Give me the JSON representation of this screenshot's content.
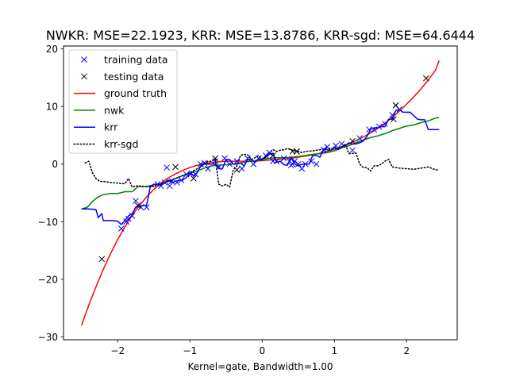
{
  "chart_data": {
    "type": "line",
    "title": "NWKR: MSE=22.1923, KRR: MSE=13.8786, KRR-sgd: MSE=64.6444",
    "xlabel": "Kernel=gate, Bandwidth=1.00",
    "ylabel": "",
    "xlim": [
      -2.75,
      2.7
    ],
    "ylim": [
      -30.5,
      20.5
    ],
    "xticks": [
      -2,
      -1,
      0,
      1,
      2
    ],
    "xtick_labels": [
      "−2",
      "−1",
      "0",
      "1",
      "2"
    ],
    "yticks": [
      -30,
      -20,
      -10,
      0,
      10,
      20
    ],
    "ytick_labels": [
      "−30",
      "−20",
      "−10",
      "0",
      "10",
      "20"
    ],
    "grid": false,
    "legend_position": "top-left",
    "series": [
      {
        "name": "training data",
        "kind": "marker",
        "marker": "x",
        "color": "#0000ff",
        "x": [
          -1.95,
          -1.88,
          -1.85,
          -1.8,
          -1.75,
          -1.68,
          -1.6,
          -1.45,
          -1.4,
          -1.35,
          -1.32,
          -1.28,
          -1.25,
          -1.18,
          -1.12,
          -1.05,
          -0.98,
          -0.92,
          -0.85,
          -0.8,
          -0.75,
          -0.65,
          -0.6,
          -0.52,
          -0.45,
          -0.35,
          -0.28,
          -0.2,
          -0.12,
          -0.05,
          0.05,
          0.1,
          0.15,
          0.2,
          0.3,
          0.38,
          0.4,
          0.42,
          0.45,
          0.48,
          0.5,
          0.55,
          0.6,
          0.68,
          0.75,
          0.85,
          0.9,
          1.02,
          1.1,
          1.25,
          1.35,
          1.48,
          1.55,
          1.62,
          1.7,
          1.8,
          1.85,
          1.9
        ],
        "y": [
          -11.2,
          -10.0,
          -9.5,
          -9.0,
          -6.4,
          -7.5,
          -7.5,
          -3.5,
          -3.8,
          -3.2,
          -0.6,
          -3.8,
          -3.0,
          -3.2,
          -2.8,
          -1.8,
          -1.6,
          -1.8,
          0.0,
          0.2,
          -0.8,
          0.5,
          -0.5,
          1.0,
          0.0,
          0.5,
          -0.8,
          1.0,
          0.0,
          1.0,
          1.5,
          2.0,
          0.5,
          0.5,
          1.0,
          0.5,
          -0.2,
          0.0,
          0.5,
          2.2,
          0.0,
          -0.8,
          0.0,
          0.5,
          0.0,
          2.5,
          3.0,
          3.2,
          3.5,
          2.4,
          4.5,
          6.0,
          6.0,
          6.5,
          7.0,
          8.5,
          10.2,
          9.5
        ]
      },
      {
        "name": "testing data",
        "kind": "marker",
        "marker": "x",
        "color": "#000000",
        "x": [
          -2.22,
          -1.72,
          -1.2,
          -0.95,
          -0.65,
          -0.35,
          0.15,
          0.42,
          0.48,
          1.25,
          1.82,
          1.85,
          2.27
        ],
        "y": [
          -16.5,
          -7.2,
          -0.5,
          -2.5,
          1.0,
          -1.0,
          1.5,
          2.2,
          2.2,
          4.0,
          7.8,
          10.2,
          14.9
        ]
      },
      {
        "name": "ground truth",
        "kind": "line",
        "color": "#ff0000",
        "x": [
          -2.5,
          -2.4,
          -2.3,
          -2.2,
          -2.1,
          -2.0,
          -1.9,
          -1.8,
          -1.7,
          -1.6,
          -1.5,
          -1.4,
          -1.3,
          -1.2,
          -1.1,
          -1.0,
          -0.9,
          -0.8,
          -0.7,
          -0.6,
          -0.5,
          -0.4,
          -0.3,
          -0.2,
          -0.1,
          0.0,
          0.1,
          0.2,
          0.3,
          0.4,
          0.5,
          0.6,
          0.7,
          0.8,
          0.9,
          1.0,
          1.1,
          1.2,
          1.3,
          1.4,
          1.5,
          1.6,
          1.7,
          1.8,
          1.9,
          2.0,
          2.1,
          2.2,
          2.3,
          2.4,
          2.45
        ],
        "y": [
          -28.0,
          -24.5,
          -21.3,
          -18.3,
          -15.6,
          -13.1,
          -10.9,
          -8.9,
          -7.2,
          -5.7,
          -4.4,
          -3.3,
          -2.4,
          -1.7,
          -1.1,
          -0.6,
          -0.2,
          0.1,
          0.3,
          0.4,
          0.5,
          0.5,
          0.5,
          0.5,
          0.5,
          0.6,
          0.7,
          0.8,
          0.9,
          1.0,
          1.2,
          1.4,
          1.6,
          1.9,
          2.2,
          2.6,
          3.0,
          3.5,
          4.1,
          4.7,
          5.4,
          6.2,
          7.1,
          8.1,
          9.2,
          10.4,
          11.7,
          13.1,
          14.6,
          16.3,
          18.0
        ]
      },
      {
        "name": "nwk",
        "kind": "line",
        "color": "#008000",
        "x": [
          -2.5,
          -2.42,
          -2.35,
          -2.28,
          -2.2,
          -2.1,
          -2.0,
          -1.9,
          -1.8,
          -1.72,
          -1.6,
          -1.5,
          -1.4,
          -1.3,
          -1.2,
          -1.1,
          -1.0,
          -0.9,
          -0.8,
          -0.7,
          -0.6,
          -0.5,
          -0.4,
          -0.3,
          -0.2,
          -0.1,
          0.0,
          0.1,
          0.2,
          0.3,
          0.4,
          0.5,
          0.6,
          0.7,
          0.8,
          0.9,
          1.0,
          1.1,
          1.2,
          1.3,
          1.4,
          1.5,
          1.6,
          1.7,
          1.8,
          1.9,
          2.0,
          2.1,
          2.2,
          2.3,
          2.4,
          2.45
        ],
        "y": [
          -7.8,
          -7.5,
          -6.5,
          -5.8,
          -5.3,
          -5.1,
          -5.1,
          -4.8,
          -4.8,
          -3.9,
          -3.9,
          -3.6,
          -3.4,
          -3.0,
          -2.5,
          -2.0,
          -1.6,
          -1.2,
          -0.7,
          -0.3,
          -0.2,
          -0.1,
          0.0,
          0.2,
          0.4,
          0.6,
          0.8,
          1.0,
          1.1,
          1.1,
          1.2,
          1.3,
          1.5,
          1.7,
          1.8,
          2.0,
          2.3,
          2.8,
          3.2,
          3.7,
          4.2,
          4.6,
          4.9,
          5.3,
          5.8,
          6.2,
          6.6,
          6.8,
          7.2,
          7.5,
          8.0,
          8.1
        ]
      },
      {
        "name": "krr",
        "kind": "line",
        "color": "#0000ff",
        "x": [
          -2.5,
          -2.4,
          -2.3,
          -2.27,
          -2.22,
          -2.2,
          -2.1,
          -2.0,
          -1.95,
          -1.9,
          -1.85,
          -1.8,
          -1.75,
          -1.7,
          -1.65,
          -1.6,
          -1.55,
          -1.5,
          -1.45,
          -1.4,
          -1.35,
          -1.3,
          -1.25,
          -1.2,
          -1.15,
          -1.1,
          -1.05,
          -1.0,
          -0.95,
          -0.9,
          -0.85,
          -0.8,
          -0.75,
          -0.7,
          -0.65,
          -0.6,
          -0.55,
          -0.5,
          -0.45,
          -0.4,
          -0.35,
          -0.3,
          -0.25,
          -0.2,
          -0.15,
          -0.1,
          -0.05,
          0.0,
          0.05,
          0.1,
          0.15,
          0.2,
          0.25,
          0.3,
          0.35,
          0.4,
          0.45,
          0.5,
          0.55,
          0.6,
          0.65,
          0.7,
          0.75,
          0.8,
          0.85,
          0.9,
          0.95,
          1.0,
          1.05,
          1.1,
          1.15,
          1.2,
          1.25,
          1.3,
          1.35,
          1.4,
          1.45,
          1.5,
          1.55,
          1.6,
          1.65,
          1.7,
          1.75,
          1.8,
          1.85,
          1.9,
          1.95,
          2.0,
          2.05,
          2.1,
          2.15,
          2.2,
          2.25,
          2.3,
          2.35,
          2.4,
          2.45
        ],
        "y": [
          -7.8,
          -7.8,
          -7.9,
          -9.3,
          -8.6,
          -9.8,
          -9.8,
          -9.9,
          -10.5,
          -9.8,
          -9.0,
          -8.6,
          -7.5,
          -7.3,
          -7.2,
          -7.2,
          -4.0,
          -3.5,
          -3.5,
          -3.6,
          -3.3,
          -2.8,
          -3.2,
          -3.0,
          -2.8,
          -2.8,
          -2.3,
          -1.7,
          -2.0,
          -1.5,
          -0.3,
          0.0,
          0.0,
          0.0,
          0.0,
          -0.8,
          -0.8,
          0.8,
          0.8,
          0.0,
          0.0,
          0.2,
          -0.3,
          0.8,
          0.8,
          0.3,
          0.9,
          0.9,
          1.2,
          1.7,
          1.9,
          0.3,
          0.5,
          -0.1,
          -0.2,
          1.2,
          0.0,
          -0.3,
          0.0,
          0.0,
          0.0,
          1.5,
          1.5,
          1.2,
          2.5,
          2.5,
          2.4,
          3.0,
          2.5,
          3.0,
          3.2,
          3.7,
          3.5,
          3.5,
          3.7,
          4.0,
          4.8,
          6.0,
          6.3,
          6.3,
          6.5,
          6.5,
          7.8,
          7.8,
          9.3,
          9.5,
          9.0,
          9.0,
          9.0,
          8.4,
          7.8,
          7.7,
          7.7,
          6.0,
          6.0,
          6.0,
          6.0
        ]
      },
      {
        "name": "krr-sgd",
        "kind": "line",
        "dash": "dotted",
        "color": "#000000",
        "x": [
          -2.45,
          -2.4,
          -2.35,
          -2.3,
          -2.25,
          -2.2,
          -2.1,
          -2.0,
          -1.95,
          -1.9,
          -1.85,
          -1.8,
          -1.75,
          -1.7,
          -1.6,
          -1.5,
          -1.45,
          -1.4,
          -1.3,
          -1.2,
          -1.1,
          -1.0,
          -0.9,
          -0.85,
          -0.8,
          -0.75,
          -0.7,
          -0.65,
          -0.6,
          -0.55,
          -0.5,
          -0.45,
          -0.4,
          -0.35,
          -0.3,
          -0.25,
          -0.2,
          -0.15,
          -0.1,
          -0.05,
          0.0,
          0.05,
          0.1,
          0.15,
          0.2,
          0.25,
          0.3,
          0.35,
          0.4,
          0.45,
          0.5,
          0.55,
          0.6,
          0.7,
          0.8,
          0.9,
          1.0,
          1.05,
          1.1,
          1.15,
          1.2,
          1.3,
          1.35,
          1.4,
          1.45,
          1.5,
          1.55,
          1.6,
          1.65,
          1.7,
          1.75,
          1.8,
          1.9,
          2.0,
          2.1,
          2.2,
          2.3,
          2.4,
          2.45
        ],
        "y": [
          0.2,
          0.5,
          -1.5,
          -2.5,
          -3.0,
          -3.0,
          -3.2,
          -3.3,
          -3.4,
          -3.4,
          -2.5,
          -4.0,
          -3.8,
          -3.8,
          -3.9,
          -3.9,
          -3.6,
          -3.4,
          -3.0,
          -2.5,
          -2.0,
          -1.5,
          -0.8,
          -0.5,
          0.0,
          0.5,
          0.5,
          0.9,
          -3.5,
          -3.8,
          -3.5,
          -4.0,
          -1.0,
          -0.3,
          1.5,
          1.7,
          1.6,
          0.8,
          1.1,
          1.5,
          0.8,
          1.2,
          2.0,
          2.5,
          2.2,
          2.4,
          2.5,
          2.7,
          2.5,
          2.3,
          2.2,
          2.0,
          2.2,
          2.3,
          2.5,
          2.8,
          2.6,
          2.8,
          3.0,
          3.5,
          1.8,
          1.9,
          0.0,
          -0.6,
          -0.6,
          -1.2,
          -0.3,
          -0.3,
          0.0,
          0.5,
          0.8,
          -0.5,
          -0.7,
          -0.8,
          -0.9,
          -0.7,
          -0.5,
          -1.0,
          -1.0
        ]
      }
    ]
  }
}
